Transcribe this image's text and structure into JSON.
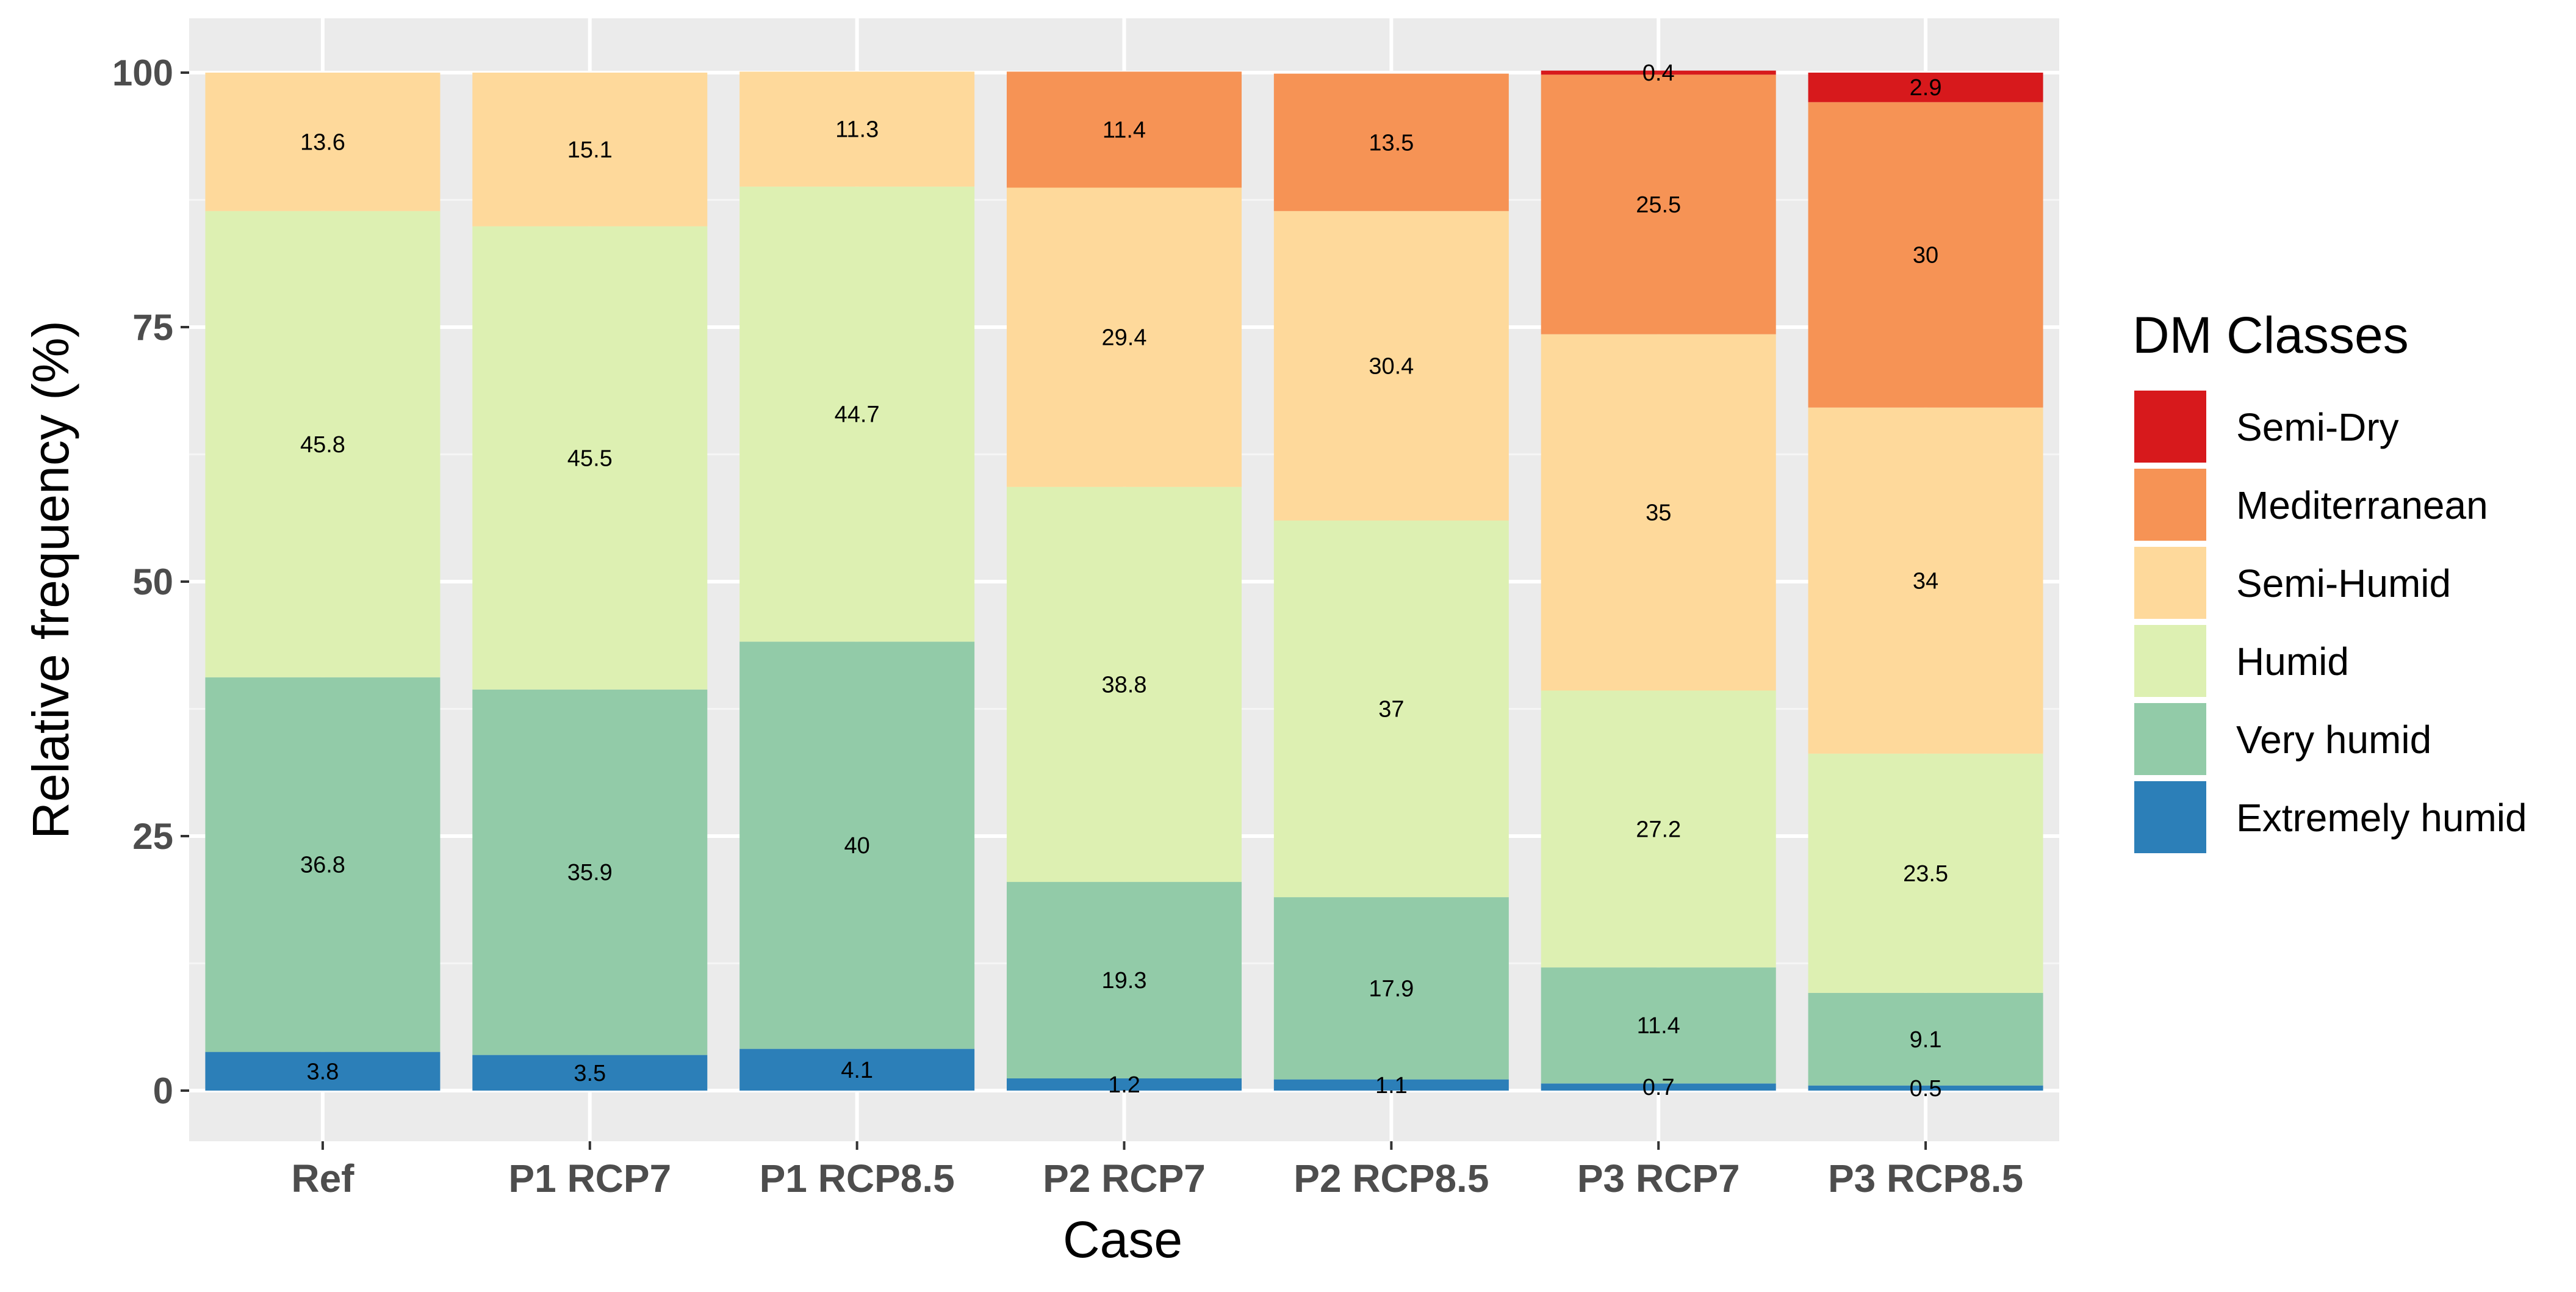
{
  "chart_data": {
    "type": "bar",
    "stacked": true,
    "title": "",
    "xlabel": "Case",
    "ylabel": "Relative frequency (%)",
    "ylim": [
      0,
      100
    ],
    "yticks": [
      "0",
      "25",
      "50",
      "75",
      "100"
    ],
    "grid": true,
    "categories": [
      "Ref",
      "P1 RCP7",
      "P1 RCP8.5",
      "P2 RCP7",
      "P2 RCP8.5",
      "P3 RCP7",
      "P3 RCP8.5"
    ],
    "legend_title": "DM Classes",
    "legend_position": "right",
    "series": [
      {
        "name": "Extremely humid",
        "color": "#2c7fb8",
        "values": [
          3.8,
          3.5,
          4.1,
          1.2,
          1.1,
          0.7,
          0.5
        ],
        "labels": [
          "3.8",
          "3.5",
          "4.1",
          "1.2",
          "1.1",
          "0.7",
          "0.5"
        ]
      },
      {
        "name": "Very humid",
        "color": "#92cba8",
        "values": [
          36.8,
          35.9,
          40,
          19.3,
          17.9,
          11.4,
          9.1
        ],
        "labels": [
          "36.8",
          "35.9",
          "40",
          "19.3",
          "17.9",
          "11.4",
          "9.1"
        ]
      },
      {
        "name": "Humid",
        "color": "#ddf0b2",
        "values": [
          45.8,
          45.5,
          44.7,
          38.8,
          37,
          27.2,
          23.5
        ],
        "labels": [
          "45.8",
          "45.5",
          "44.7",
          "38.8",
          "37",
          "27.2",
          "23.5"
        ]
      },
      {
        "name": "Semi-Humid",
        "color": "#fed99b",
        "values": [
          13.6,
          15.1,
          11.3,
          29.4,
          30.4,
          35,
          34
        ],
        "labels": [
          "13.6",
          "15.1",
          "11.3",
          "29.4",
          "30.4",
          "35",
          "34"
        ]
      },
      {
        "name": "Mediterranean",
        "color": "#f69355",
        "values": [
          0,
          0,
          0,
          11.4,
          13.5,
          25.5,
          30
        ],
        "labels": [
          "",
          "",
          "",
          "11.4",
          "13.5",
          "25.5",
          "30"
        ]
      },
      {
        "name": "Semi-Dry",
        "color": "#d7191c",
        "values": [
          0,
          0,
          0,
          0,
          0,
          0.4,
          2.9
        ],
        "labels": [
          "",
          "",
          "",
          "",
          "",
          "0.4",
          "2.9"
        ]
      }
    ],
    "legend_order": [
      "Semi-Dry",
      "Mediterranean",
      "Semi-Humid",
      "Humid",
      "Very humid",
      "Extremely humid"
    ]
  }
}
